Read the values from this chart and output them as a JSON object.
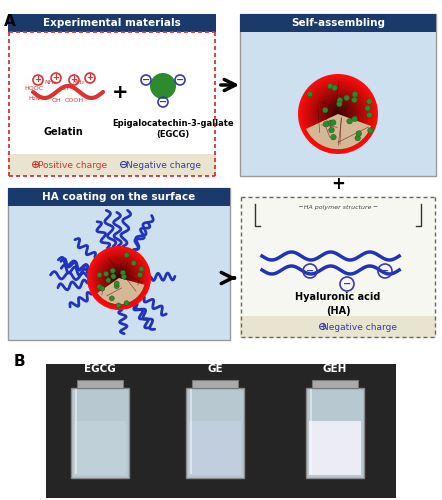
{
  "fig_width": 4.42,
  "fig_height": 5.0,
  "dpi": 100,
  "bg_color": "#ffffff",
  "panel_A_label": "A",
  "panel_B_label": "B",
  "panel1_title": "Experimental materials",
  "panel1_title_bg": "#1a3a6b",
  "panel1_title_color": "#ffffff",
  "panel1_border_color": "#e03030",
  "panel1_bg": "#ffffff",
  "panel1_footer_bg": "#e8e4d0",
  "panel1_footer_pos_color": "#e03030",
  "panel1_footer_neg_color": "#3a3aaa",
  "gelatin_label": "Gelatin",
  "egcg_label": "Epigalocatechin-3-gallate\n(EGCG)",
  "panel2_title": "Self-assembling",
  "panel2_title_bg": "#1a3a6b",
  "panel2_title_color": "#ffffff",
  "panel3_title": "HA coating on the surface",
  "panel3_title_bg": "#1a3a6b",
  "panel3_title_color": "#ffffff",
  "ha_label": "Hyaluronic acid\n(HA)",
  "ha_footer_color": "#3a3aaa",
  "ha_footer_bg": "#e8e4d0",
  "egcg_circle_color": "#2d8a2d",
  "gelatin_color": "#e03030",
  "pos_charge_color": "#e03030",
  "neg_charge_color": "#3a3aaa",
  "bottle_labels": [
    "EGCG",
    "GE",
    "GEH"
  ],
  "photo_bg": "#2a2a2a"
}
